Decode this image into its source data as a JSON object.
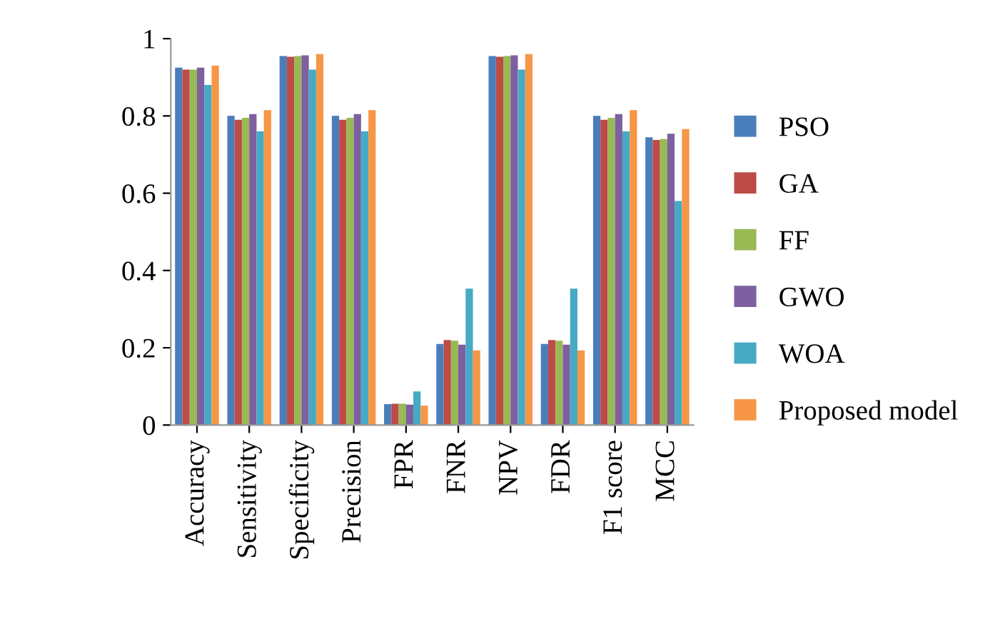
{
  "chart_data": {
    "type": "bar",
    "categories": [
      "Accuracy",
      "Sensitivity",
      "Specificity",
      "Precision",
      "FPR",
      "FNR",
      "NPV",
      "FDR",
      "F1 score",
      "MCC"
    ],
    "series": [
      {
        "name": "PSO",
        "color": "#4a7ebb",
        "values": [
          0.925,
          0.8,
          0.955,
          0.8,
          0.054,
          0.21,
          0.955,
          0.21,
          0.8,
          0.745
        ]
      },
      {
        "name": "GA",
        "color": "#be4b48",
        "values": [
          0.92,
          0.79,
          0.953,
          0.79,
          0.055,
          0.22,
          0.953,
          0.22,
          0.79,
          0.738
        ]
      },
      {
        "name": "FF",
        "color": "#98b954",
        "values": [
          0.92,
          0.795,
          0.955,
          0.795,
          0.055,
          0.218,
          0.955,
          0.218,
          0.795,
          0.74
        ]
      },
      {
        "name": "GWO",
        "color": "#7d60a0",
        "values": [
          0.925,
          0.805,
          0.957,
          0.805,
          0.053,
          0.208,
          0.957,
          0.208,
          0.805,
          0.754
        ]
      },
      {
        "name": "WOA",
        "color": "#46aac5",
        "values": [
          0.88,
          0.76,
          0.92,
          0.76,
          0.087,
          0.353,
          0.92,
          0.353,
          0.76,
          0.58
        ]
      },
      {
        "name": "Proposed model",
        "color": "#f79646",
        "values": [
          0.93,
          0.815,
          0.96,
          0.815,
          0.05,
          0.193,
          0.96,
          0.193,
          0.815,
          0.766
        ]
      }
    ],
    "ylim": [
      0,
      1
    ],
    "yticks": [
      0,
      {
        "value": 0.2,
        "label": "0.2"
      },
      {
        "value": 0.4,
        "label": "0.4"
      },
      {
        "value": 0.6,
        "label": "0.6"
      },
      {
        "value": 0.8,
        "label": "0.8"
      },
      1
    ],
    "grid": false,
    "legend": "right"
  }
}
